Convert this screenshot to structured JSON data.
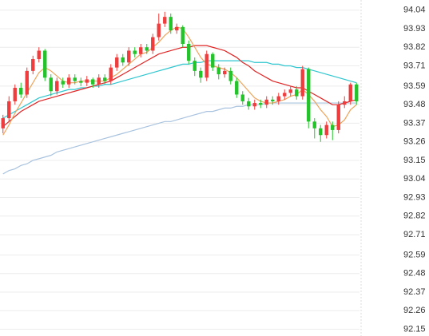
{
  "chart_data": {
    "type": "candlestick",
    "ylim": [
      92.11,
      94.1
    ],
    "yticks": [
      94.04,
      93.93,
      93.82,
      93.71,
      93.59,
      93.48,
      93.37,
      93.26,
      93.15,
      93.04,
      92.93,
      92.82,
      92.71,
      92.59,
      92.48,
      92.37,
      92.26,
      92.15
    ],
    "grid": true,
    "up_color": "#f03c3c",
    "down_color": "#22c42a",
    "open": [
      93.34,
      93.4,
      93.5,
      93.58,
      93.54,
      93.68,
      93.75,
      93.8,
      93.64,
      93.56,
      93.62,
      93.6,
      93.64,
      93.62,
      93.61,
      93.63,
      93.6,
      93.64,
      93.62,
      93.7,
      93.76,
      93.73,
      93.8,
      93.78,
      93.82,
      93.8,
      93.88,
      93.96,
      94.0,
      93.92,
      93.94,
      93.84,
      93.74,
      93.68,
      93.64,
      93.78,
      93.7,
      93.66,
      93.68,
      93.62,
      93.54,
      93.5,
      93.47,
      93.49,
      93.48,
      93.51,
      93.5,
      93.53,
      93.55,
      93.57,
      93.53,
      93.69,
      93.38,
      93.34,
      93.3,
      93.36,
      93.33,
      93.48,
      93.5,
      93.6
    ],
    "high": [
      93.42,
      93.53,
      93.6,
      93.61,
      93.7,
      93.77,
      93.82,
      93.81,
      93.66,
      93.64,
      93.64,
      93.66,
      93.66,
      93.64,
      93.65,
      93.64,
      93.66,
      93.66,
      93.72,
      93.78,
      93.78,
      93.82,
      93.82,
      93.84,
      93.84,
      93.9,
      94.02,
      94.03,
      94.02,
      93.96,
      93.95,
      93.86,
      93.76,
      93.7,
      93.8,
      93.79,
      93.72,
      93.7,
      93.7,
      93.64,
      93.56,
      93.52,
      93.51,
      93.51,
      93.53,
      93.53,
      93.55,
      93.57,
      93.59,
      93.59,
      93.71,
      93.7,
      93.4,
      93.36,
      93.38,
      93.38,
      93.5,
      93.53,
      93.61,
      93.61
    ],
    "low": [
      93.31,
      93.38,
      93.48,
      93.52,
      93.52,
      93.66,
      93.73,
      93.62,
      93.53,
      93.54,
      93.58,
      93.58,
      93.6,
      93.59,
      93.59,
      93.58,
      93.58,
      93.6,
      93.6,
      93.68,
      93.71,
      93.71,
      93.76,
      93.76,
      93.78,
      93.78,
      93.86,
      93.94,
      93.9,
      93.9,
      93.82,
      93.72,
      93.65,
      93.61,
      93.62,
      93.68,
      93.63,
      93.64,
      93.6,
      93.52,
      93.48,
      93.45,
      93.45,
      93.46,
      93.46,
      93.48,
      93.48,
      93.51,
      93.53,
      93.51,
      93.51,
      93.34,
      93.28,
      93.26,
      93.28,
      93.27,
      93.31,
      93.46,
      93.48,
      93.48
    ],
    "close": [
      93.4,
      93.5,
      93.58,
      93.54,
      93.68,
      93.75,
      93.8,
      93.64,
      93.56,
      93.62,
      93.6,
      93.64,
      93.62,
      93.61,
      93.63,
      93.6,
      93.64,
      93.62,
      93.7,
      93.76,
      93.73,
      93.8,
      93.78,
      93.82,
      93.8,
      93.88,
      93.96,
      94.0,
      93.92,
      93.94,
      93.84,
      93.74,
      93.68,
      93.64,
      93.78,
      93.7,
      93.66,
      93.68,
      93.62,
      93.54,
      93.5,
      93.47,
      93.49,
      93.48,
      93.51,
      93.5,
      93.53,
      93.55,
      93.57,
      93.53,
      93.69,
      93.38,
      93.34,
      93.3,
      93.36,
      93.33,
      93.48,
      93.5,
      93.6,
      93.5
    ],
    "series": [
      {
        "color": "#a9c3df",
        "values": [
          93.07,
          93.09,
          93.1,
          93.12,
          93.13,
          93.15,
          93.16,
          93.17,
          93.18,
          93.2,
          93.21,
          93.22,
          93.23,
          93.24,
          93.25,
          93.26,
          93.27,
          93.28,
          93.29,
          93.3,
          93.31,
          93.32,
          93.33,
          93.34,
          93.35,
          93.36,
          93.37,
          93.38,
          93.38,
          93.39,
          93.4,
          93.41,
          93.42,
          93.43,
          93.44,
          93.44,
          93.45,
          93.46,
          93.46,
          93.47,
          93.47,
          93.48,
          93.48,
          93.48,
          93.49,
          93.49,
          93.49,
          93.49,
          93.49,
          93.49,
          93.49,
          93.49,
          93.49,
          93.49,
          93.49,
          93.49,
          93.49,
          93.49,
          93.49,
          93.49
        ]
      },
      {
        "color": "#2fc6cf",
        "values": [
          93.4,
          93.42,
          93.44,
          93.46,
          93.48,
          93.5,
          93.52,
          93.53,
          93.54,
          93.55,
          93.56,
          93.57,
          93.57,
          93.58,
          93.58,
          93.59,
          93.59,
          93.6,
          93.6,
          93.61,
          93.62,
          93.63,
          93.64,
          93.65,
          93.66,
          93.67,
          93.68,
          93.69,
          93.7,
          93.71,
          93.72,
          93.72,
          93.73,
          93.73,
          93.74,
          93.74,
          93.74,
          93.74,
          93.74,
          93.74,
          93.74,
          93.74,
          93.73,
          93.73,
          93.73,
          93.72,
          93.72,
          93.71,
          93.71,
          93.7,
          93.7,
          93.69,
          93.68,
          93.67,
          93.66,
          93.65,
          93.64,
          93.63,
          93.62,
          93.61
        ]
      },
      {
        "color": "#e02424",
        "values": [
          93.35,
          93.38,
          93.41,
          93.44,
          93.46,
          93.48,
          93.5,
          93.51,
          93.52,
          93.53,
          93.54,
          93.55,
          93.56,
          93.57,
          93.58,
          93.59,
          93.6,
          93.61,
          93.62,
          93.64,
          93.66,
          93.68,
          93.7,
          93.72,
          93.74,
          93.76,
          93.78,
          93.79,
          93.8,
          93.81,
          93.82,
          93.82,
          93.83,
          93.83,
          93.83,
          93.82,
          93.81,
          93.8,
          93.78,
          93.76,
          93.73,
          93.71,
          93.68,
          93.66,
          93.64,
          93.62,
          93.61,
          93.6,
          93.59,
          93.58,
          93.58,
          93.56,
          93.54,
          93.52,
          93.5,
          93.48,
          93.48,
          93.49,
          93.5,
          93.51
        ]
      },
      {
        "color": "#eea45a",
        "values": [
          93.3,
          93.36,
          93.43,
          93.49,
          93.55,
          93.61,
          93.67,
          93.7,
          93.68,
          93.65,
          93.62,
          93.61,
          93.61,
          93.62,
          93.62,
          93.62,
          93.62,
          93.62,
          93.64,
          93.66,
          93.69,
          93.72,
          93.75,
          93.78,
          93.79,
          93.82,
          93.85,
          93.89,
          93.92,
          93.94,
          93.93,
          93.88,
          93.82,
          93.76,
          93.72,
          93.71,
          93.7,
          93.69,
          93.67,
          93.64,
          93.6,
          93.56,
          93.52,
          93.5,
          93.49,
          93.49,
          93.5,
          93.51,
          93.53,
          93.54,
          93.57,
          93.54,
          93.5,
          93.45,
          93.41,
          93.35,
          93.36,
          93.39,
          93.45,
          93.48
        ]
      }
    ]
  }
}
